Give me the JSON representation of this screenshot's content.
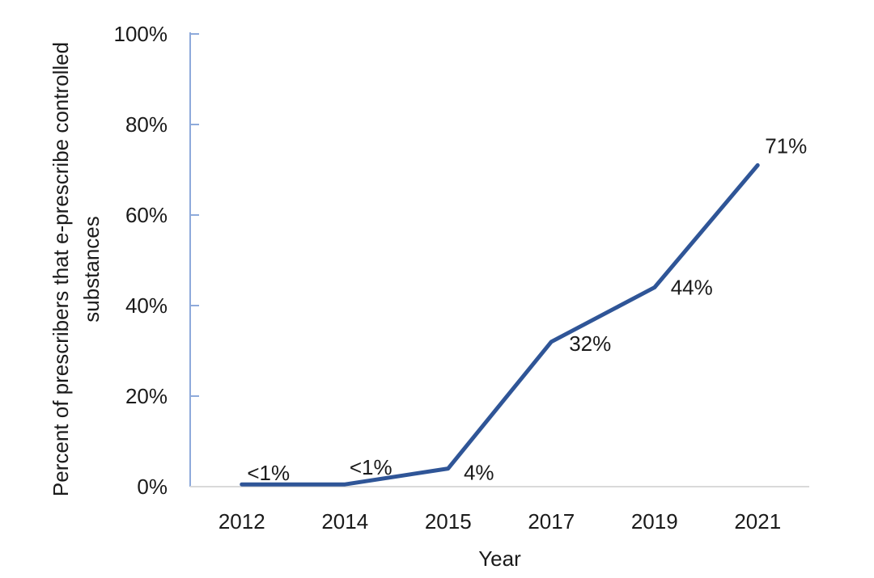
{
  "chart_data": {
    "type": "line",
    "title": "",
    "xlabel": "Year",
    "ylabel": "Percent of prescribers that e-prescribe controlled substances",
    "ylabel_lines": [
      "Percent of prescribers that e-prescribe controlled",
      "substances"
    ],
    "categories": [
      "2012",
      "2014",
      "2015",
      "2017",
      "2019",
      "2021"
    ],
    "values": [
      0.5,
      0.5,
      4,
      32,
      44,
      71
    ],
    "point_labels": [
      "<1%",
      "<1%",
      "4%",
      "32%",
      "44%",
      "71%"
    ],
    "ylim": [
      0,
      100
    ],
    "yticks": [
      0,
      20,
      40,
      60,
      80,
      100
    ],
    "ytick_labels": [
      "0%",
      "20%",
      "40%",
      "60%",
      "80%",
      "100%"
    ],
    "grid": false,
    "legend": false,
    "colors": {
      "series_line": "#2F5597",
      "y_axis_line": "#8EAADB",
      "x_axis_line": "#D9D9D9",
      "text": "#1A1A1A",
      "background": "#FFFFFF"
    }
  }
}
